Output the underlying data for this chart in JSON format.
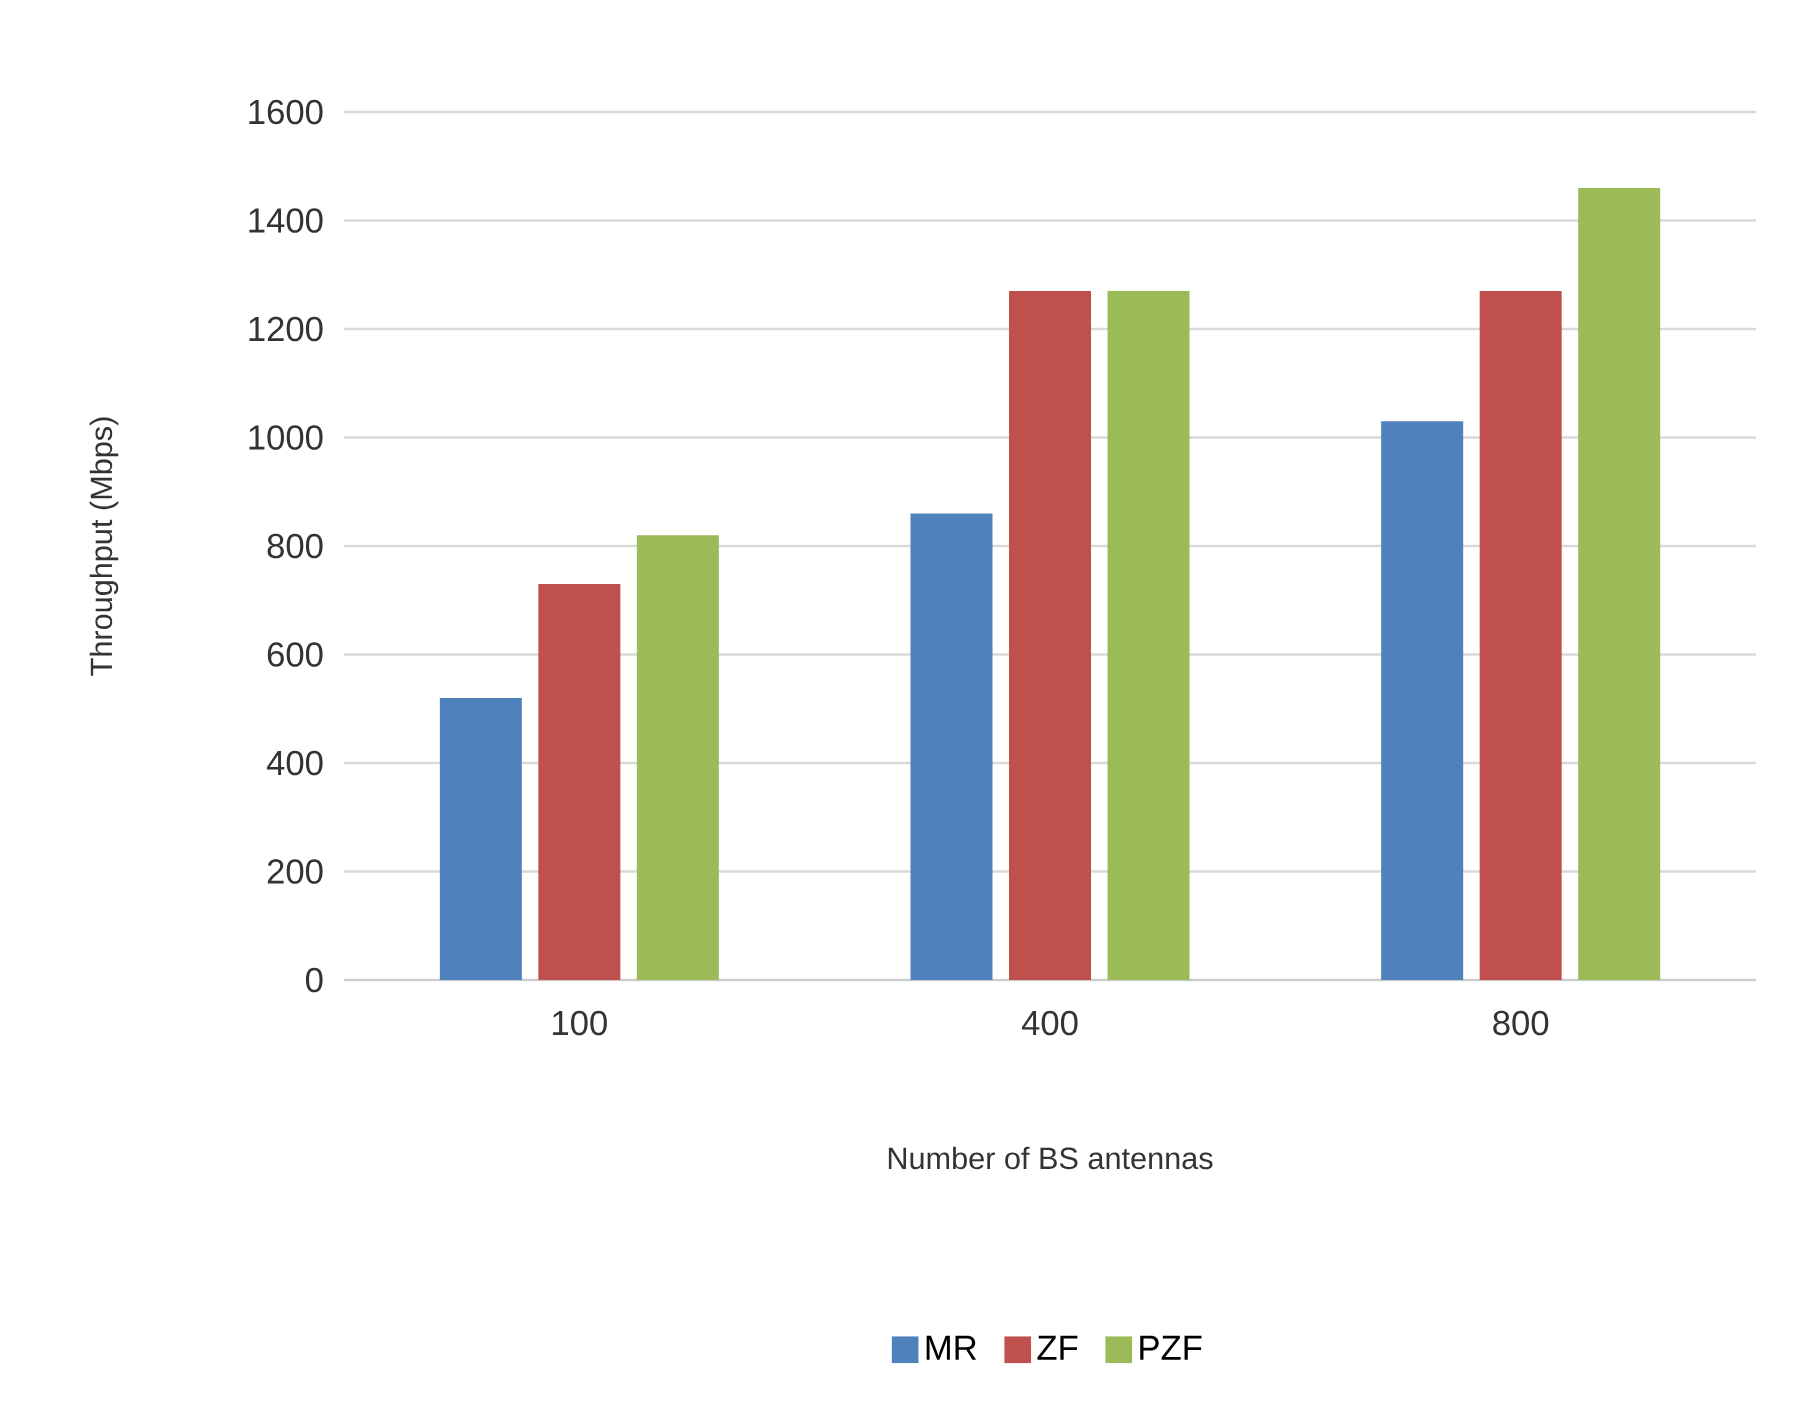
{
  "chart_data": {
    "type": "bar",
    "xlabel": "Number of BS antennas",
    "ylabel": "Throughput (Mbps)",
    "categories": [
      "100",
      "400",
      "800"
    ],
    "series": [
      {
        "name": "MR",
        "color": "#4f81bd",
        "values": [
          520,
          860,
          1030
        ]
      },
      {
        "name": "ZF",
        "color": "#c0504d",
        "values": [
          730,
          1270,
          1270
        ]
      },
      {
        "name": "PZF",
        "color": "#9bbb59",
        "values": [
          820,
          1270,
          1460
        ]
      }
    ],
    "ylim": [
      0,
      1600
    ],
    "yticks": [
      0,
      200,
      400,
      600,
      800,
      1000,
      1200,
      1400,
      1600
    ],
    "grid": "y",
    "legend": "bottom"
  }
}
